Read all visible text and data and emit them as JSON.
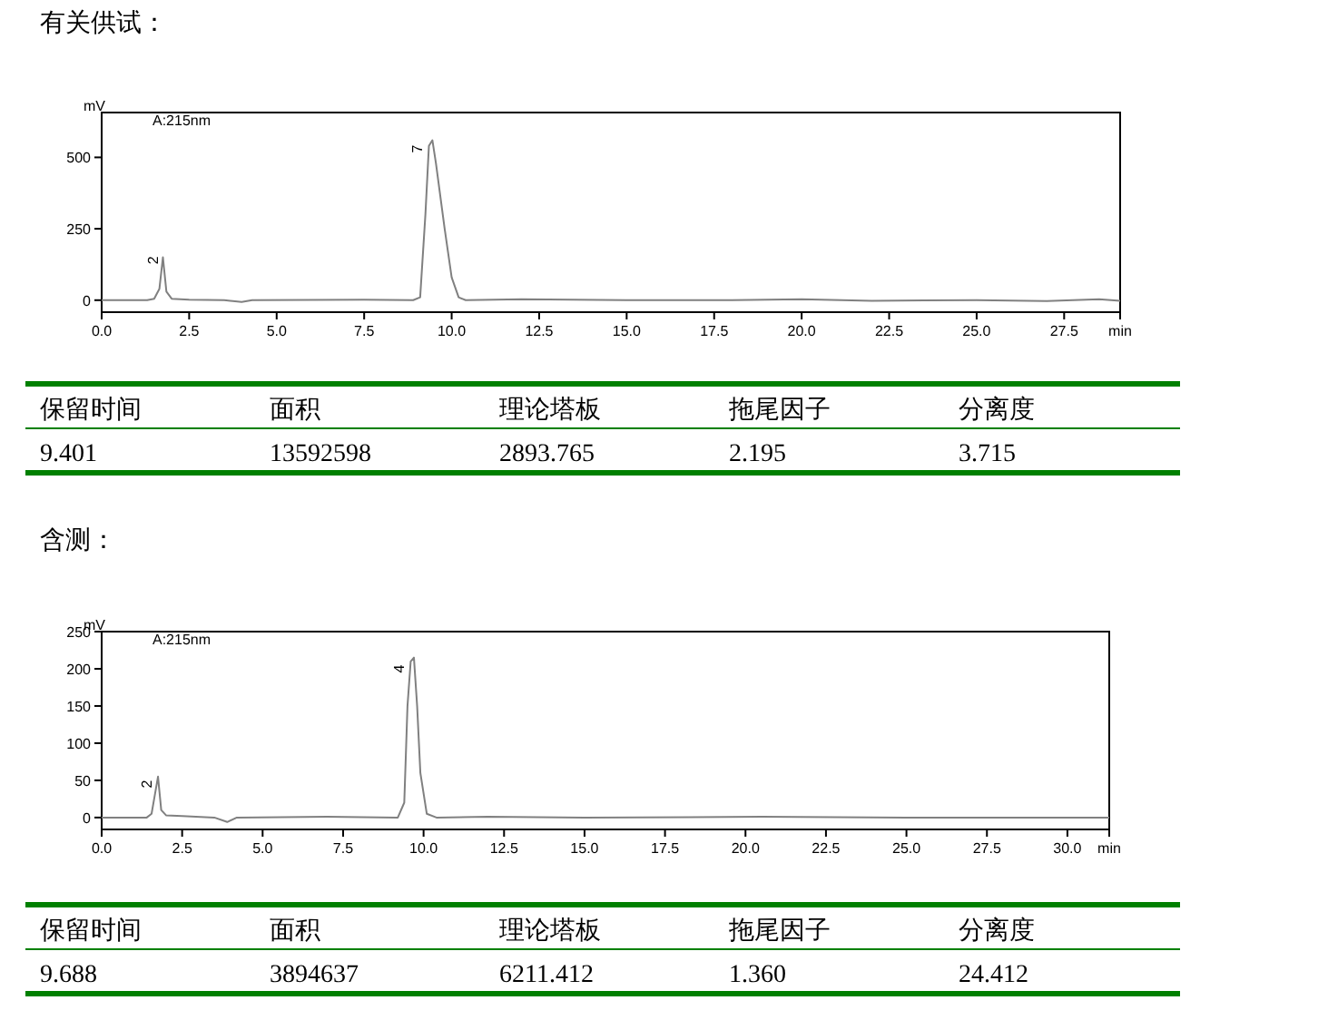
{
  "chart_data": [
    {
      "type": "line",
      "title": "有关供试：",
      "ylabel": "mV",
      "xlim": [
        0,
        29.1
      ],
      "ylim": [
        -42,
        657
      ],
      "xticks": [
        {
          "value": 0,
          "label": "0.0"
        },
        2.5,
        {
          "value": 5,
          "label": "5.0"
        },
        7.5,
        {
          "value": 10,
          "label": "10.0"
        },
        12.5,
        {
          "value": 15,
          "label": "15.0"
        },
        17.5,
        {
          "value": 20,
          "label": "20.0"
        },
        22.5,
        {
          "value": 25,
          "label": "25.0"
        },
        27.5,
        {
          "value": 29.1,
          "label": "min"
        }
      ],
      "yticks": [
        0,
        250,
        500
      ],
      "annotations": [
        "A:215nm",
        {
          "text": "2",
          "x": 1.6,
          "y": 140
        },
        {
          "text": "7",
          "x": 9.15,
          "y": 530
        }
      ],
      "series": [
        {
          "color": "#808080",
          "x": [
            0,
            1.3,
            1.5,
            1.65,
            1.75,
            1.85,
            2.0,
            2.5,
            3.5,
            4.0,
            4.3,
            7.5,
            8.9,
            9.1,
            9.25,
            9.35,
            9.45,
            9.55,
            9.8,
            10.0,
            10.2,
            10.4,
            12,
            15,
            18,
            20,
            22,
            25,
            27,
            28.5,
            29.1
          ],
          "values": [
            0,
            0,
            5,
            40,
            150,
            30,
            5,
            2,
            0,
            -6,
            0,
            2,
            0,
            10,
            300,
            540,
            560,
            480,
            250,
            80,
            10,
            0,
            3,
            0,
            0,
            3,
            -2,
            0,
            -3,
            3,
            -2
          ]
        }
      ]
    },
    {
      "type": "other",
      "annotations": [
        "保留时间",
        "面积",
        "理论塔板",
        "拖尾因子",
        "分离度",
        "9.401",
        "13592598",
        "2893.765",
        "2.195",
        "3.715"
      ]
    },
    {
      "type": "line",
      "title": "含测：",
      "ylabel": "mV",
      "xlim": [
        0,
        31.3
      ],
      "ylim": [
        -16,
        250
      ],
      "xticks": [
        {
          "value": 0,
          "label": "0.0"
        },
        2.5,
        {
          "value": 5,
          "label": "5.0"
        },
        7.5,
        {
          "value": 10,
          "label": "10.0"
        },
        12.5,
        {
          "value": 15,
          "label": "15.0"
        },
        17.5,
        {
          "value": 20,
          "label": "20.0"
        },
        22.5,
        {
          "value": 25,
          "label": "25.0"
        },
        27.5,
        {
          "value": 30,
          "label": "30.0"
        },
        {
          "value": 31.3,
          "label": "min"
        }
      ],
      "yticks": [
        0,
        50,
        100,
        150,
        200,
        250
      ],
      "annotations": [
        "A:215nm",
        {
          "text": "2",
          "x": 1.55,
          "y": 45
        },
        {
          "text": "4",
          "x": 9.4,
          "y": 200
        }
      ],
      "series": [
        {
          "color": "#808080",
          "x": [
            0,
            1.4,
            1.55,
            1.65,
            1.75,
            1.85,
            2.0,
            2.5,
            3.5,
            3.9,
            4.2,
            7,
            9.2,
            9.4,
            9.5,
            9.6,
            9.7,
            9.8,
            9.9,
            10.1,
            10.4,
            12,
            15,
            20.5,
            25,
            31.3
          ],
          "values": [
            0,
            0,
            5,
            30,
            55,
            10,
            3,
            2,
            0,
            -6,
            0,
            1,
            0,
            20,
            150,
            210,
            215,
            150,
            60,
            5,
            0,
            1,
            0,
            1,
            0,
            0
          ]
        }
      ]
    },
    {
      "type": "other",
      "annotations": [
        "保留时间",
        "面积",
        "理论塔板",
        "拖尾因子",
        "分离度",
        "9.688",
        "3894637",
        "6211.412",
        "1.360",
        "24.412"
      ]
    }
  ]
}
